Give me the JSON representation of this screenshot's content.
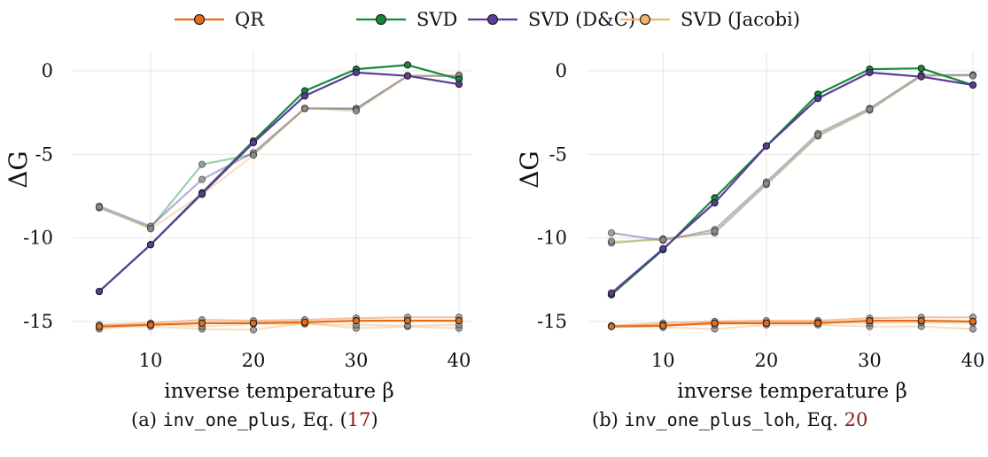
{
  "legend": [
    {
      "name": "QR",
      "color": "#e66c16"
    },
    {
      "name": "SVD",
      "color": "#138a3a"
    },
    {
      "name": "SVD (D&C)",
      "color": "#5b3c99"
    },
    {
      "name": "SVD (Jacobi)",
      "color": "#f4b36a"
    }
  ],
  "captions": [
    {
      "prefix": "(a) ",
      "code": "inv_one_plus",
      "middle": ", Eq. (",
      "ref": "17",
      "suffix": ")"
    },
    {
      "prefix": "(b) ",
      "code": "inv_one_plus_loh",
      "middle": ", Eq. ",
      "ref": "20",
      "suffix": ""
    }
  ],
  "chart_data": [
    {
      "type": "line",
      "xlabel": "inverse temperature β",
      "ylabel": "ΔG",
      "xlim": [
        5,
        40
      ],
      "ylim": [
        -15.4,
        0.3
      ],
      "xticks": [
        10,
        20,
        30,
        40
      ],
      "yticks": [
        0,
        -5,
        -10,
        -15
      ],
      "grid": true,
      "legend_position": "top",
      "x": [
        5,
        10,
        15,
        20,
        25,
        30,
        35,
        40
      ],
      "series": [
        {
          "name": "QR",
          "color": "#e66c16",
          "faded": false,
          "values": [
            -15.3,
            -15.2,
            -15.1,
            -15.1,
            -15.05,
            -14.95,
            -14.95,
            -14.95
          ]
        },
        {
          "name": "QR",
          "color": "#e66c16",
          "faded": true,
          "values": [
            -15.2,
            -15.1,
            -14.9,
            -14.95,
            -14.9,
            -14.8,
            -14.75,
            -14.75
          ]
        },
        {
          "name": "SVD (Jacobi)",
          "color": "#f4b36a",
          "faded": true,
          "values": [
            -15.35,
            -15.3,
            -15.45,
            -15.5,
            -15.1,
            -15.4,
            -15.3,
            -15.4
          ]
        },
        {
          "name": "SVD (Jacobi)",
          "color": "#f4b36a",
          "faded": true,
          "values": [
            -15.45,
            -15.15,
            -15.3,
            -15.15,
            -15.15,
            -15.2,
            -15.25,
            -15.2
          ]
        },
        {
          "name": "SVD",
          "color": "#138a3a",
          "faded": true,
          "values": [
            -8.2,
            -9.4,
            -5.6,
            -5.0,
            -2.25,
            -2.25,
            -0.3,
            -0.3
          ]
        },
        {
          "name": "SVD (D&C)",
          "color": "#5b3c99",
          "faded": true,
          "values": [
            -8.1,
            -9.3,
            -6.5,
            -4.9,
            -2.25,
            -2.3,
            -0.3,
            -0.3
          ]
        },
        {
          "name": "SVD (Jacobi)",
          "color": "#f4b36a",
          "faded": true,
          "values": [
            -8.15,
            -9.45,
            -7.4,
            -5.05,
            -2.25,
            -2.4,
            -0.3,
            -0.25
          ]
        },
        {
          "name": "SVD",
          "color": "#138a3a",
          "faded": false,
          "values": [
            -13.2,
            -10.4,
            -7.3,
            -4.2,
            -1.2,
            0.1,
            0.35,
            -0.5
          ]
        },
        {
          "name": "SVD (D&C)",
          "color": "#5b3c99",
          "faded": false,
          "values": [
            -13.2,
            -10.4,
            -7.35,
            -4.3,
            -1.5,
            -0.1,
            -0.3,
            -0.8
          ]
        }
      ]
    },
    {
      "type": "line",
      "xlabel": "inverse temperature β",
      "ylabel": "ΔG",
      "xlim": [
        5,
        40
      ],
      "ylim": [
        -15.4,
        0.3
      ],
      "xticks": [
        10,
        20,
        30,
        40
      ],
      "yticks": [
        0,
        -5,
        -10,
        -15
      ],
      "grid": true,
      "legend_position": "top",
      "x": [
        5,
        10,
        15,
        20,
        25,
        30,
        35,
        40
      ],
      "series": [
        {
          "name": "QR",
          "color": "#e66c16",
          "faded": false,
          "values": [
            -15.3,
            -15.25,
            -15.1,
            -15.1,
            -15.1,
            -14.95,
            -14.95,
            -15.0
          ]
        },
        {
          "name": "QR",
          "color": "#e66c16",
          "faded": true,
          "values": [
            -15.25,
            -15.1,
            -15.0,
            -14.95,
            -14.95,
            -14.8,
            -14.75,
            -14.75
          ]
        },
        {
          "name": "SVD (Jacobi)",
          "color": "#f4b36a",
          "faded": true,
          "values": [
            -15.3,
            -15.35,
            -15.45,
            -15.2,
            -15.2,
            -15.3,
            -15.3,
            -15.45
          ]
        },
        {
          "name": "SVD (Jacobi)",
          "color": "#f4b36a",
          "faded": true,
          "values": [
            -15.3,
            -15.2,
            -15.2,
            -15.1,
            -15.05,
            -15.1,
            -15.05,
            -15.1
          ]
        },
        {
          "name": "SVD",
          "color": "#138a3a",
          "faded": true,
          "values": [
            -10.3,
            -10.05,
            -9.7,
            -6.8,
            -3.9,
            -2.35,
            -0.3,
            -0.25
          ]
        },
        {
          "name": "SVD (D&C)",
          "color": "#5b3c99",
          "faded": true,
          "values": [
            -9.7,
            -10.15,
            -9.5,
            -6.65,
            -3.75,
            -2.25,
            -0.25,
            -0.25
          ]
        },
        {
          "name": "SVD (Jacobi)",
          "color": "#f4b36a",
          "faded": true,
          "values": [
            -10.2,
            -10.1,
            -9.6,
            -6.75,
            -3.85,
            -2.3,
            -0.3,
            -0.3
          ]
        },
        {
          "name": "SVD",
          "color": "#138a3a",
          "faded": false,
          "values": [
            -13.4,
            -10.7,
            -7.6,
            -4.5,
            -1.4,
            0.1,
            0.15,
            -0.85
          ]
        },
        {
          "name": "SVD (D&C)",
          "color": "#5b3c99",
          "faded": false,
          "values": [
            -13.3,
            -10.65,
            -7.9,
            -4.5,
            -1.65,
            -0.1,
            -0.35,
            -0.85
          ]
        }
      ]
    }
  ]
}
